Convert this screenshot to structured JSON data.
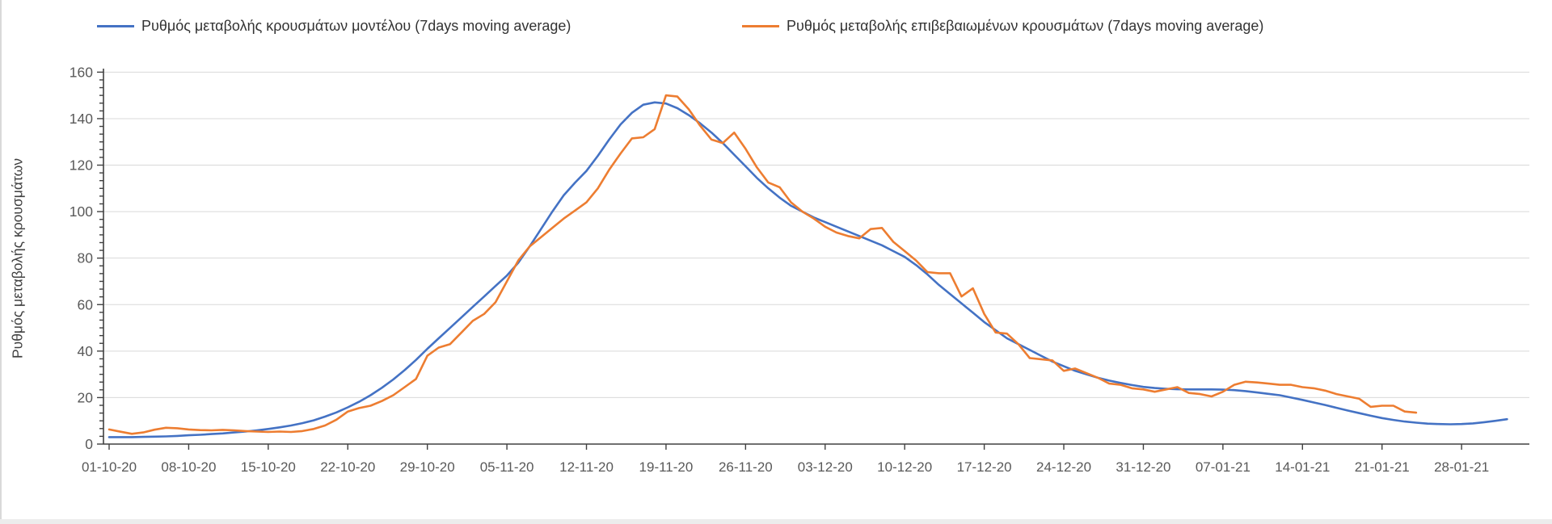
{
  "legend": [
    {
      "label": "Ρυθμός μεταβολής κρουσμάτων μοντέλου (7days moving average)",
      "color": "#4472c4"
    },
    {
      "label": "Ρυθμός μεταβολής επιβεβαιωμένων κρουσμάτων (7days moving average)",
      "color": "#ed7d31"
    }
  ],
  "colors": {
    "series_model": "#4472c4",
    "series_confirmed": "#ed7d31",
    "gridline": "#d9d9d9",
    "axis": "#404040",
    "tick_label": "#595959",
    "legend_text": "#333333"
  },
  "chart_data": {
    "type": "line",
    "title": "",
    "xlabel": "",
    "ylabel": "Ρυθμός μεταβολής κρουσμάτων",
    "ylim": [
      0,
      160
    ],
    "y_ticks": [
      0,
      20,
      40,
      60,
      80,
      100,
      120,
      140,
      160
    ],
    "grid": "horizontal-major",
    "legend_position": "top",
    "x_start_label": "01-10-20",
    "x_tick_interval_days": 7,
    "x_tick_labels": [
      "01-10-20",
      "08-10-20",
      "15-10-20",
      "22-10-20",
      "29-10-20",
      "05-11-20",
      "12-11-20",
      "19-11-20",
      "26-11-20",
      "03-12-20",
      "10-12-20",
      "17-12-20",
      "24-12-20",
      "31-12-20",
      "07-01-21",
      "14-01-21",
      "21-01-21",
      "28-01-21"
    ],
    "series": [
      {
        "name": "Ρυθμός μεταβολής κρουσμάτων μοντέλου (7days moving average)",
        "color": "#4472c4",
        "start_day": 0,
        "values": [
          3.0,
          3.0,
          3.0,
          3.1,
          3.2,
          3.3,
          3.5,
          3.8,
          4.0,
          4.3,
          4.6,
          5.0,
          5.4,
          5.9,
          6.5,
          7.2,
          8.0,
          9.0,
          10.2,
          11.8,
          13.6,
          15.8,
          18.2,
          21.0,
          24.2,
          27.8,
          31.8,
          36.2,
          41.0,
          45.5,
          50.0,
          54.5,
          59.0,
          63.5,
          68.0,
          72.5,
          78.0,
          85.0,
          92.5,
          100.0,
          107.0,
          112.5,
          117.5,
          124.0,
          131.0,
          137.5,
          142.5,
          146.0,
          147.0,
          146.5,
          144.5,
          141.5,
          138.0,
          134.0,
          129.5,
          124.5,
          119.5,
          114.5,
          110.0,
          106.0,
          102.5,
          100.0,
          97.5,
          95.5,
          93.5,
          91.5,
          89.5,
          87.5,
          85.5,
          83.0,
          80.5,
          77.0,
          73.0,
          68.5,
          64.5,
          60.5,
          56.5,
          52.5,
          49.0,
          45.5,
          43.0,
          40.5,
          38.0,
          35.5,
          33.5,
          31.5,
          30.0,
          28.5,
          27.3,
          26.3,
          25.4,
          24.6,
          24.1,
          23.8,
          23.6,
          23.5,
          23.5,
          23.5,
          23.4,
          23.2,
          22.8,
          22.2,
          21.6,
          21.0,
          20.0,
          19.0,
          17.9,
          16.8,
          15.6,
          14.4,
          13.3,
          12.2,
          11.2,
          10.4,
          9.7,
          9.2,
          8.8,
          8.6,
          8.5,
          8.6,
          8.9,
          9.4,
          10.0,
          10.7
        ]
      },
      {
        "name": "Ρυθμός μεταβολής επιβεβαιωμένων κρουσμάτων (7days moving average)",
        "color": "#ed7d31",
        "start_day": 0,
        "values": [
          6.3,
          5.3,
          4.4,
          5.0,
          6.2,
          7.0,
          6.8,
          6.3,
          6.0,
          5.9,
          6.1,
          5.9,
          5.6,
          5.4,
          5.2,
          5.4,
          5.2,
          5.6,
          6.5,
          8.0,
          10.5,
          14.0,
          15.5,
          16.5,
          18.5,
          21.0,
          24.5,
          28.0,
          38.0,
          41.5,
          43.0,
          48.0,
          53.0,
          56.0,
          61.0,
          70.0,
          79.0,
          85.0,
          89.0,
          93.0,
          97.0,
          100.5,
          104.0,
          110.0,
          118.0,
          125.0,
          131.5,
          132.0,
          135.5,
          150.0,
          149.5,
          144.0,
          137.0,
          131.0,
          129.5,
          134.0,
          127.0,
          119.0,
          112.5,
          110.5,
          104.0,
          100.0,
          97.0,
          93.5,
          91.0,
          89.5,
          88.5,
          92.5,
          93.0,
          87.0,
          83.0,
          79.0,
          74.0,
          73.5,
          73.5,
          63.5,
          67.0,
          56.0,
          48.0,
          47.5,
          43.0,
          37.0,
          36.5,
          36.0,
          31.5,
          32.5,
          30.5,
          28.5,
          26.0,
          25.5,
          24.0,
          23.5,
          22.5,
          23.5,
          24.5,
          22.0,
          21.5,
          20.5,
          22.5,
          25.5,
          26.8,
          26.5,
          26.0,
          25.5,
          25.5,
          24.5,
          24.0,
          23.0,
          21.5,
          20.5,
          19.5,
          16.0,
          16.5,
          16.5,
          14.0,
          13.5
        ]
      }
    ]
  }
}
